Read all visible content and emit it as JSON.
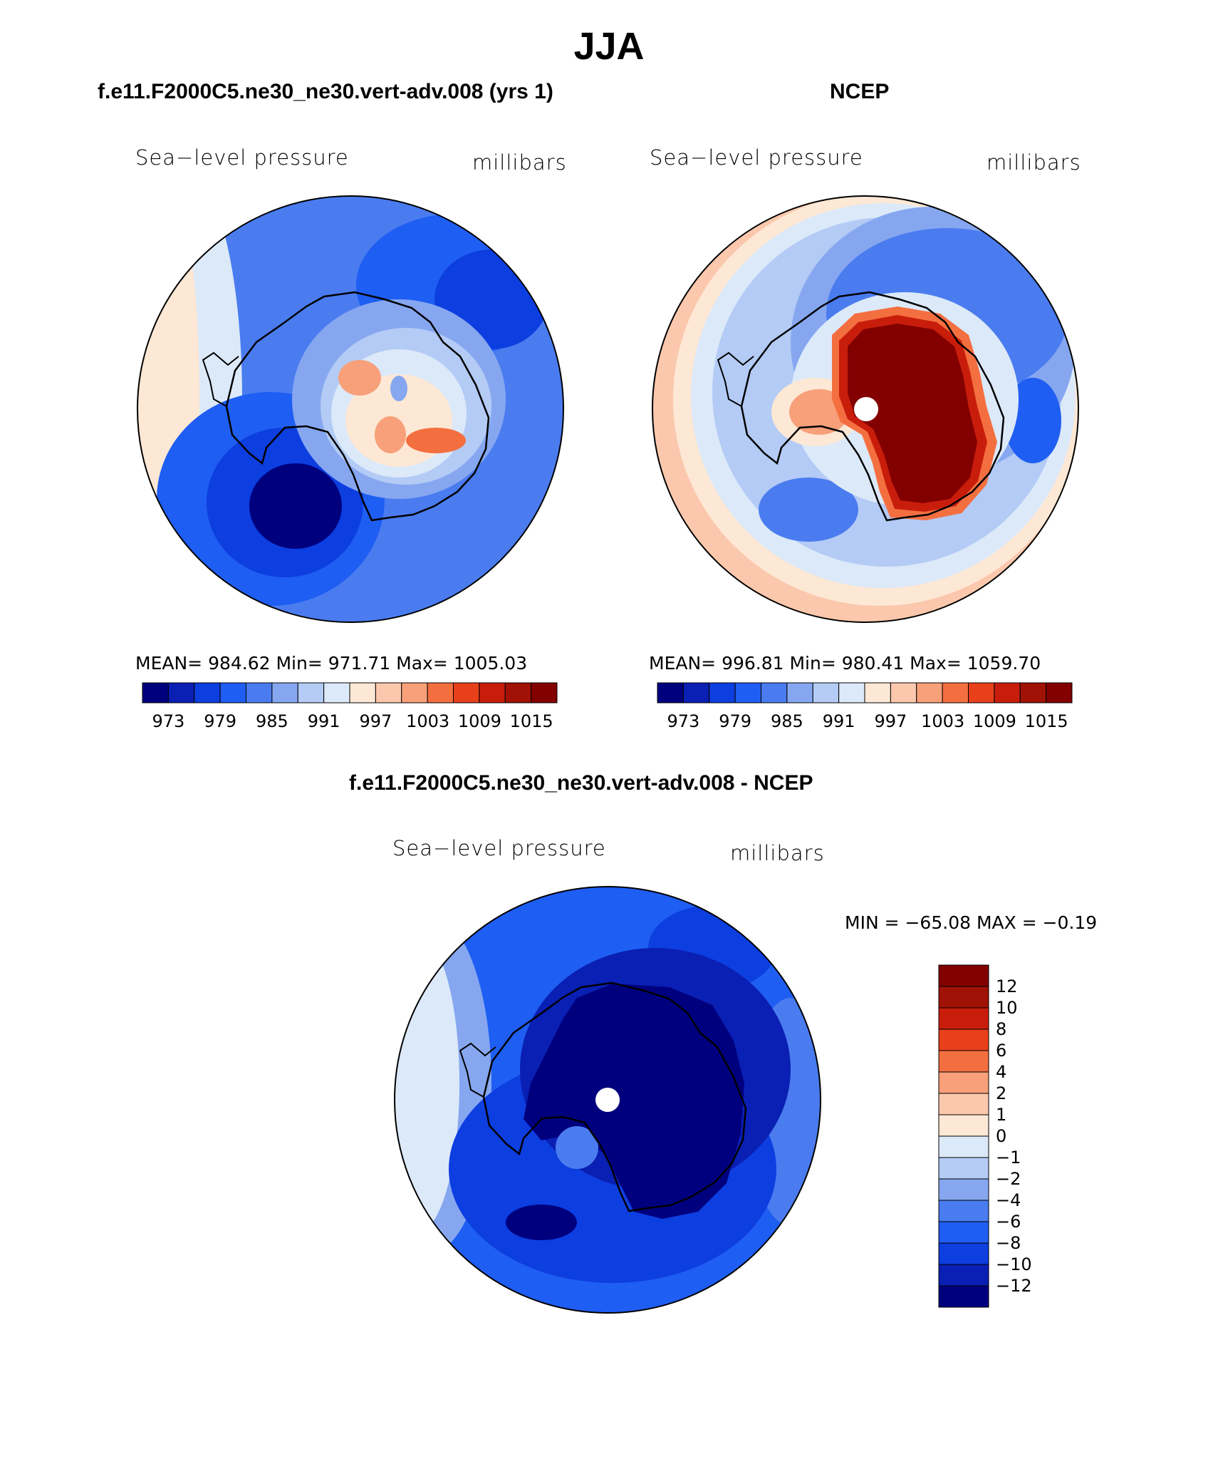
{
  "main_title": "JJA",
  "palette": [
    "#00007f",
    "#0a1fb3",
    "#0d3ee0",
    "#1f5ef2",
    "#4a7cf0",
    "#86a7f0",
    "#b3cbf5",
    "#dce9f9",
    "#fde8d5",
    "#fbc8ad",
    "#f7a07a",
    "#f46f40",
    "#e8401a",
    "#c91d0c",
    "#a01205",
    "#830000"
  ],
  "panels": {
    "model": {
      "title": "f.e11.F2000C5.ne30_ne30.vert-adv.008 (yrs 1)",
      "left_label": "Sea−level pressure",
      "right_label": "millibars",
      "stats": "MEAN=  984.62    Min=  971.71    Max=  1005.03",
      "ticks": [
        "973",
        "979",
        "985",
        "991",
        "997",
        "1003",
        "1009",
        "1015"
      ]
    },
    "obs": {
      "title": "NCEP",
      "left_label": "Sea−level pressure",
      "right_label": "millibars",
      "stats": "MEAN=  996.81    Min=  980.41    Max=  1059.70",
      "ticks": [
        "973",
        "979",
        "985",
        "991",
        "997",
        "1003",
        "1009",
        "1015"
      ]
    },
    "diff": {
      "title": "f.e11.F2000C5.ne30_ne30.vert-adv.008 - NCEP",
      "left_label": "Sea−level pressure",
      "right_label": "millibars",
      "stats": "MIN  =  −65.08  MAX  =    −0.19",
      "levels": [
        "12",
        "10",
        "8",
        "6",
        "4",
        "2",
        "1",
        "0",
        "−1",
        "−2",
        "−4",
        "−6",
        "−8",
        "−10",
        "−12"
      ]
    }
  }
}
